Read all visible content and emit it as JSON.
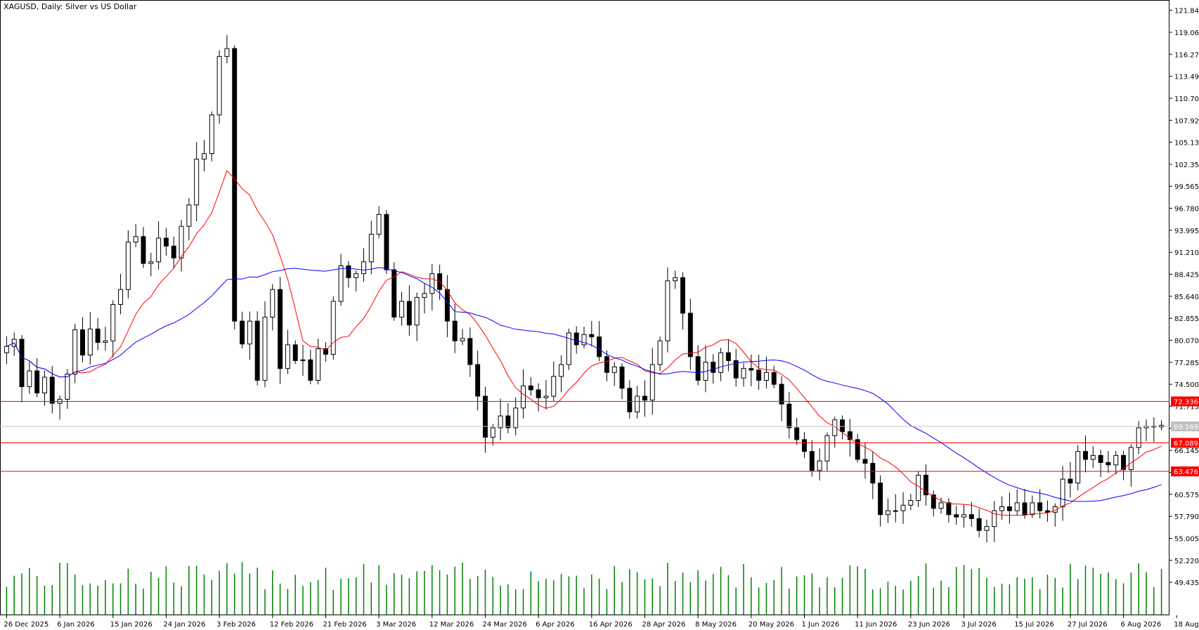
{
  "window": {
    "title": "XAGUSD, Daily:  Silver vs US Dollar"
  },
  "colors": {
    "background": "#ffffff",
    "axis": "#000000",
    "candle_up_body": "#ffffff",
    "candle_down_body": "#000000",
    "candle_outline": "#000000",
    "volume": "#008000",
    "ma_fast": "#ff0000",
    "ma_slow": "#0000ff",
    "level_line": "#ff0000",
    "level_label_bg": "#ff0000",
    "current_price_line": "#c0c0c0",
    "current_price_label_bg": "#c0c0c0"
  },
  "chart_data": {
    "type": "candlestick",
    "symbol": "XAGUSD",
    "timeframe": "Daily",
    "description": "Silver vs US Dollar",
    "y_axis": {
      "range": [
        46.6,
        122.7
      ],
      "ticks": [
        "121.845",
        "119.060",
        "116.275",
        "113.490",
        "110.705",
        "107.920",
        "105.135",
        "102.350",
        "99.565",
        "96.780",
        "93.995",
        "91.210",
        "88.425",
        "85.640",
        "82.855",
        "80.070",
        "77.285",
        "74.500",
        "71.715",
        "68.930",
        "66.145",
        "63.360",
        "60.575",
        "57.790",
        "55.005",
        "52.220",
        "49.435"
      ]
    },
    "x_axis": {
      "labels": [
        {
          "text": "26 Dec 2025",
          "bar": 0
        },
        {
          "text": "6 Jan 2026",
          "bar": 7
        },
        {
          "text": "15 Jan 2026",
          "bar": 14
        },
        {
          "text": "24 Jan 2026",
          "bar": 21
        },
        {
          "text": "3 Feb 2026",
          "bar": 28
        },
        {
          "text": "12 Feb 2026",
          "bar": 35
        },
        {
          "text": "21 Feb 2026",
          "bar": 42
        },
        {
          "text": "3 Mar 2026",
          "bar": 49
        },
        {
          "text": "12 Mar 2026",
          "bar": 56
        },
        {
          "text": "24 Mar 2026",
          "bar": 63
        },
        {
          "text": "6 Apr 2026",
          "bar": 70
        },
        {
          "text": "16 Apr 2026",
          "bar": 77
        },
        {
          "text": "28 Apr 2026",
          "bar": 84
        },
        {
          "text": "8 May 2026",
          "bar": 91
        },
        {
          "text": "20 May 2026",
          "bar": 98
        },
        {
          "text": "1 Jun 2026",
          "bar": 105
        },
        {
          "text": "11 Jun 2026",
          "bar": 112
        },
        {
          "text": "23 Jun 2026",
          "bar": 119
        },
        {
          "text": "3 Jul 2026",
          "bar": 126
        },
        {
          "text": "15 Jul 2026",
          "bar": 133
        },
        {
          "text": "27 Jul 2026",
          "bar": 140
        },
        {
          "text": "6 Aug 2026",
          "bar": 147
        },
        {
          "text": "18 Aug 2026",
          "bar": 154
        }
      ]
    },
    "series_closes": [
      79.3,
      80.2,
      74.2,
      76.2,
      73.4,
      75.4,
      72.1,
      72.6,
      75.8,
      81.4,
      78.2,
      81.5,
      79.8,
      80.0,
      84.6,
      86.5,
      92.5,
      93.2,
      89.8,
      90.0,
      93.0,
      92.0,
      90.5,
      94.5,
      97.2,
      103.0,
      103.7,
      108.6,
      116.0,
      117.0,
      82.5,
      79.6,
      82.5,
      75.0,
      83.0,
      86.5,
      76.5,
      79.5,
      77.5,
      77.6,
      75.0,
      79.0,
      78.3,
      85.0,
      89.5,
      88.0,
      88.5,
      90.0,
      93.5,
      96.0,
      89.0,
      83.0,
      85.0,
      82.0,
      85.5,
      86.0,
      88.5,
      86.5,
      82.5,
      80.0,
      80.3,
      77.0,
      73.0,
      67.8,
      69.0,
      70.5,
      69.0,
      71.5,
      74.3,
      73.8,
      72.8,
      73.0,
      75.5,
      77.0,
      81.0,
      79.5,
      80.8,
      80.5,
      78.0,
      76.0,
      76.7,
      74.0,
      71.0,
      73.0,
      72.5,
      77.0,
      80.0,
      87.6,
      88.0,
      83.5,
      78.0,
      75.0,
      77.3,
      76.0,
      78.5,
      77.5,
      75.3,
      76.5,
      76.3,
      75.0,
      76.0,
      74.5,
      72.0,
      69.0,
      67.5,
      66.0,
      63.6,
      64.8,
      68.0,
      70.0,
      68.5,
      67.5,
      65.0,
      64.5,
      62.0,
      58.0,
      58.5,
      58.5,
      59.2,
      59.8,
      63.0,
      60.5,
      58.8,
      59.5,
      58.0,
      57.7,
      58.0,
      57.5,
      56.0,
      56.5,
      58.5,
      59.0,
      58.5,
      59.5,
      58.0,
      59.5,
      58.5,
      58.3,
      59.0,
      62.5,
      62.0,
      66.0,
      65.0,
      65.5,
      64.6,
      64.3,
      65.5,
      63.7,
      66.5,
      69.0,
      69.2,
      69.1,
      69.3
    ],
    "levels": [
      {
        "label": "72.336",
        "value": 72.336
      },
      {
        "label": "67.089",
        "value": 67.089
      },
      {
        "label": "63.476",
        "value": 63.476
      }
    ],
    "current_price": {
      "label": "69.169",
      "value": 69.169
    },
    "grid": false,
    "legend": "none"
  }
}
